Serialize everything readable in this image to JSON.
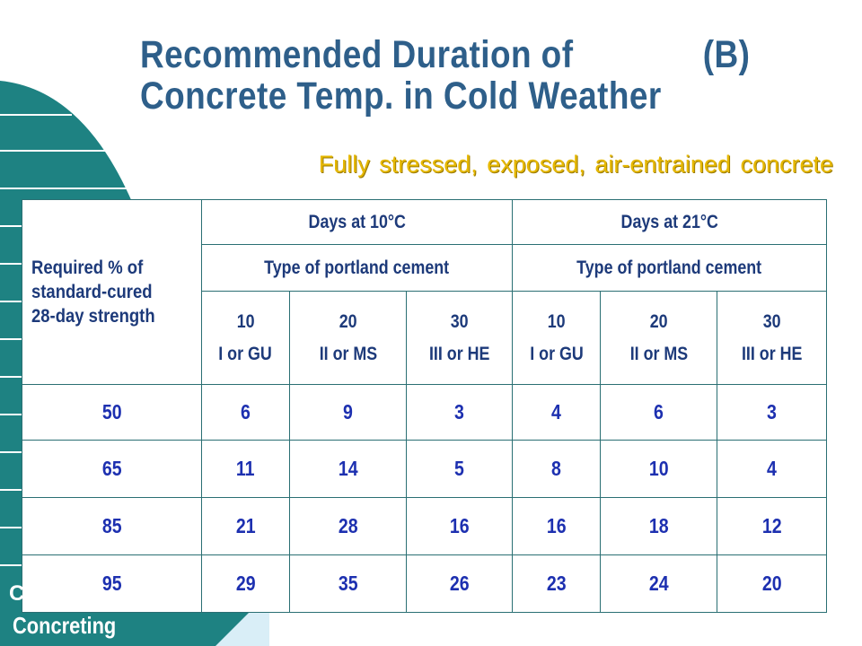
{
  "title": {
    "line1_left": "Recommended Duration of",
    "line1_right": "(B)",
    "line2": "Concrete Temp. in Cold Weather"
  },
  "subtitle": "Fully stressed, exposed, air-entrained concrete",
  "footer": {
    "stub": "C",
    "label": "Concreting"
  },
  "table": {
    "row_header": "Required % of standard-cured 28-day strength",
    "groups": [
      {
        "label": "Days at 10°C",
        "sublabel": "Type of portland cement"
      },
      {
        "label": "Days at 21°C",
        "sublabel": "Type of portland cement"
      }
    ],
    "cement_types": [
      {
        "number": "10",
        "name": "I or GU"
      },
      {
        "number": "20",
        "name": "II or MS"
      },
      {
        "number": "30",
        "name": "III or HE"
      },
      {
        "number": "10",
        "name": "I or GU"
      },
      {
        "number": "20",
        "name": "II or MS"
      },
      {
        "number": "30",
        "name": "III or HE"
      }
    ],
    "rows": [
      {
        "strength": "50",
        "values": [
          "6",
          "9",
          "3",
          "4",
          "6",
          "3"
        ]
      },
      {
        "strength": "65",
        "values": [
          "11",
          "14",
          "5",
          "8",
          "10",
          "4"
        ]
      },
      {
        "strength": "85",
        "values": [
          "21",
          "28",
          "16",
          "16",
          "18",
          "12"
        ]
      },
      {
        "strength": "95",
        "values": [
          "29",
          "35",
          "26",
          "23",
          "24",
          "20"
        ]
      }
    ]
  },
  "colors": {
    "teal": "#1e8282",
    "title": "#2e5f8a",
    "subtitle": "#e6b800",
    "header_text": "#1d3a7a",
    "value_text": "#1d30b0",
    "pale_blue": "#d9eef7"
  }
}
